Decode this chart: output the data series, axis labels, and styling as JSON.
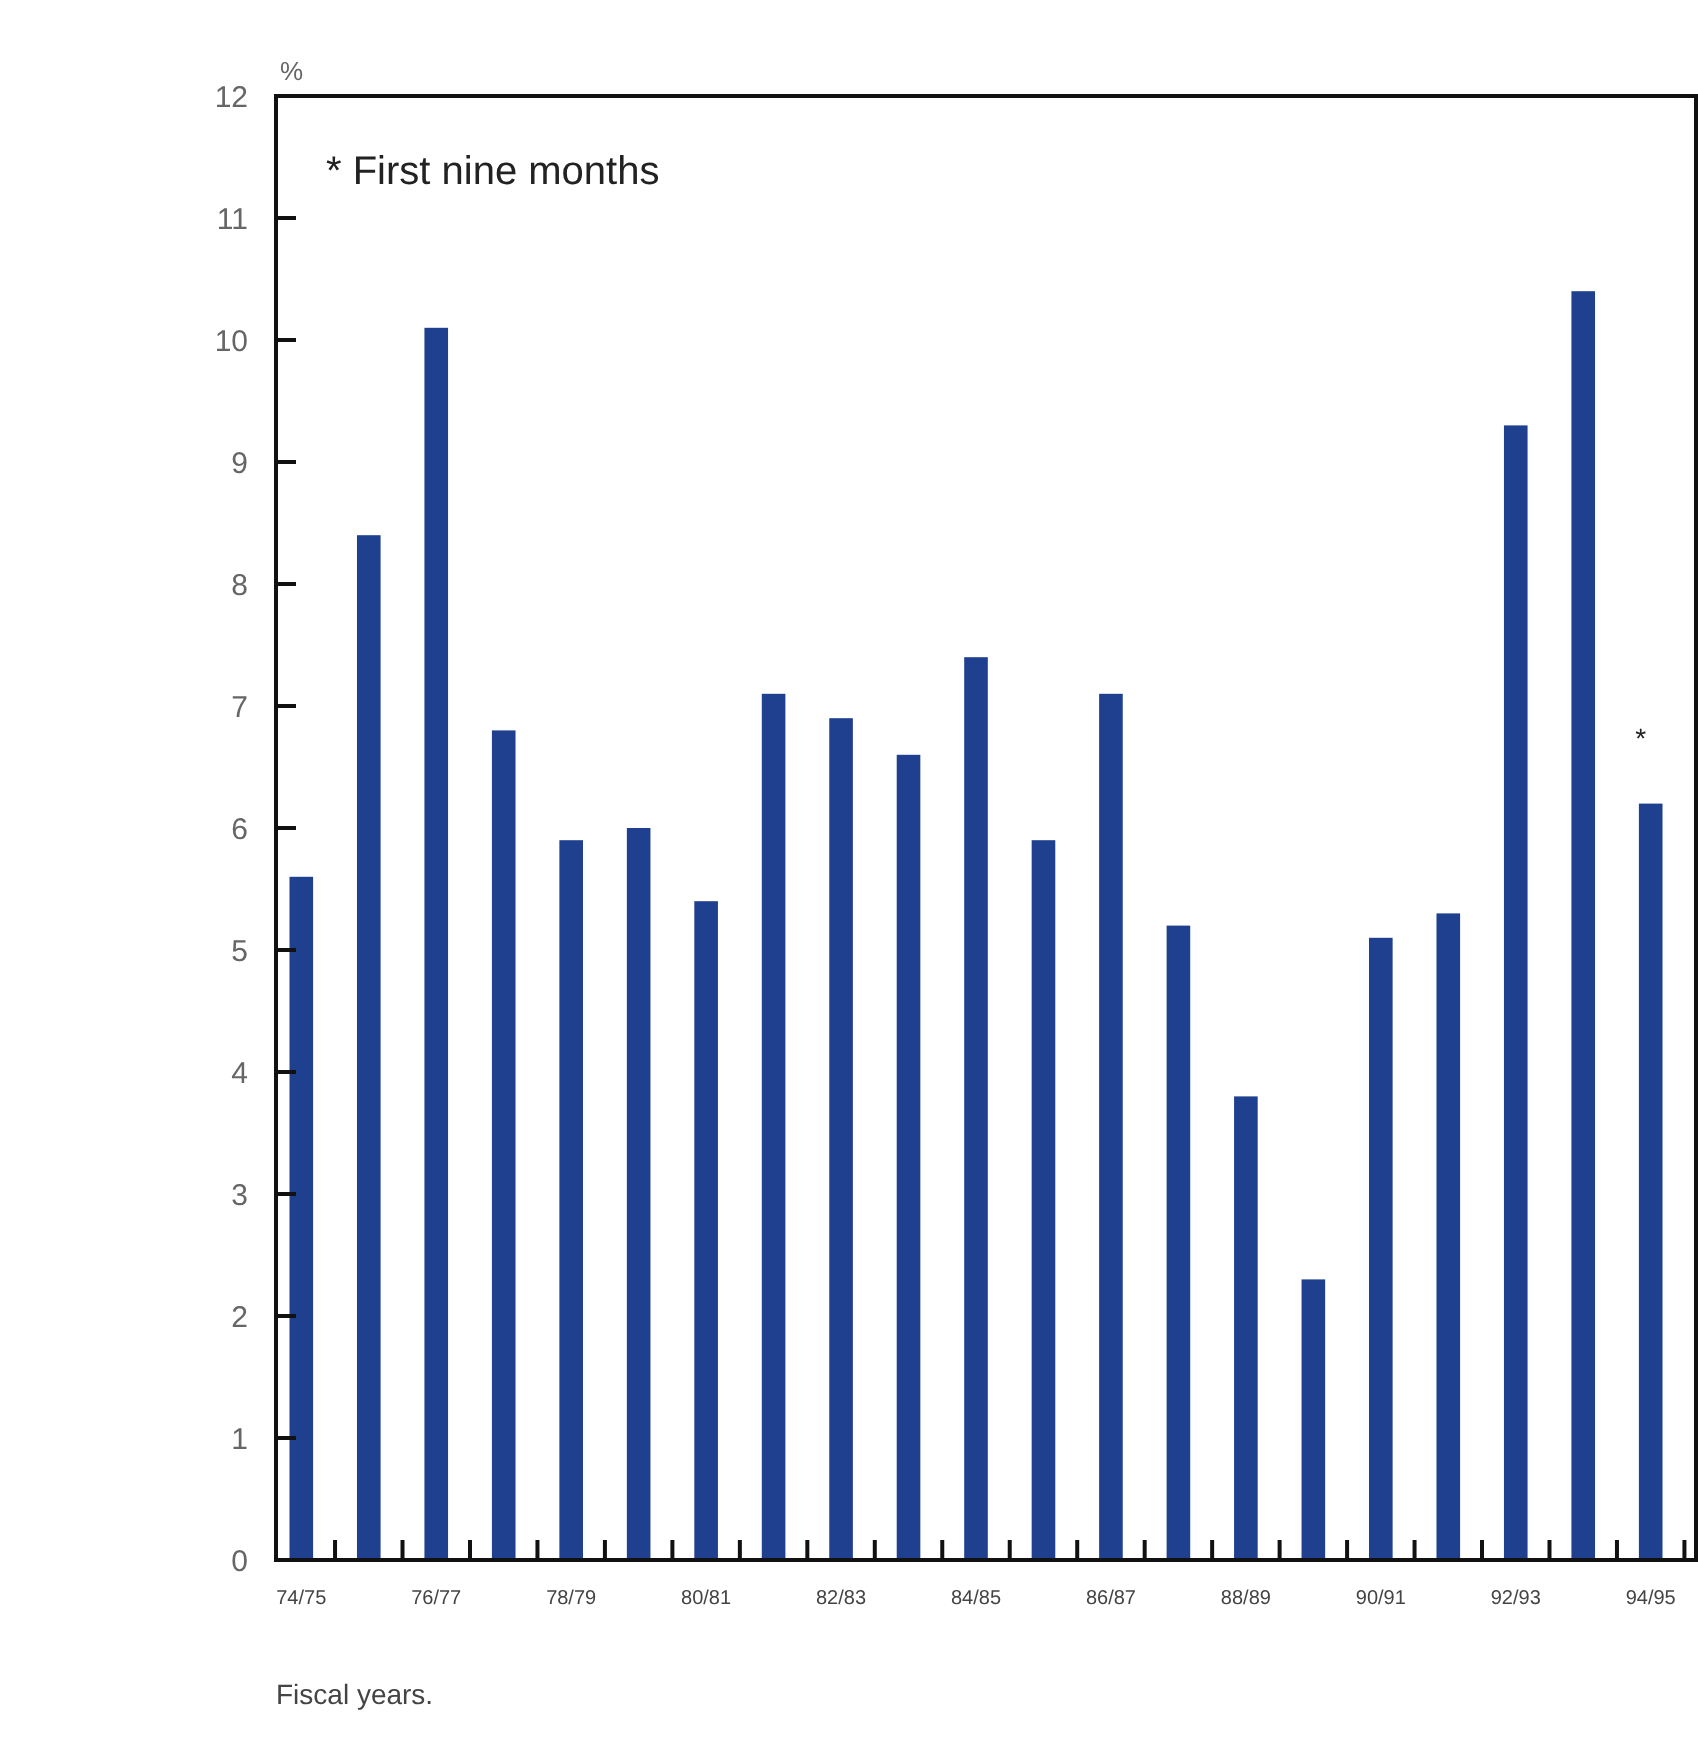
{
  "chart_data": {
    "type": "bar",
    "ylabel": "%",
    "xlabel": "Fiscal years.",
    "categories": [
      "74/75",
      null,
      "76/77",
      null,
      "78/79",
      null,
      "80/81",
      null,
      "82/83",
      null,
      "84/85",
      null,
      "86/87",
      null,
      "88/89",
      null,
      "90/91",
      null,
      "92/93",
      null,
      "94/95"
    ],
    "values": [
      5.6,
      8.4,
      10.1,
      6.8,
      5.9,
      6.0,
      5.4,
      7.1,
      6.9,
      6.6,
      7.4,
      5.9,
      7.1,
      5.2,
      3.8,
      2.3,
      5.1,
      5.3,
      9.3,
      10.4,
      6.2
    ],
    "color": "#1f3f8f",
    "ylim": [
      0,
      12
    ],
    "yticks": [
      0,
      1,
      2,
      3,
      4,
      5,
      6,
      7,
      8,
      9,
      10,
      11,
      12
    ],
    "grid": false,
    "annotations": [
      "* First nine months",
      {
        "text": "*",
        "x": "94/95",
        "y": 6.2
      }
    ]
  }
}
